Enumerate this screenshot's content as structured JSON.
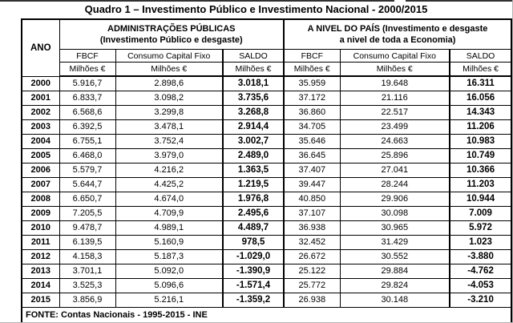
{
  "title": "Quadro 1 – Investimento Público e Investimento Nacional - 2000/2015",
  "table": {
    "ano_label": "ANO",
    "unit": "Milhões €",
    "groups": [
      {
        "line1": "ADMINISTRAÇÕES PÚBLICAS",
        "line2": "(Investimento Público e desgaste)",
        "cols": [
          "FBCF",
          "Consumo Capital Fixo",
          "SALDO"
        ]
      },
      {
        "line1": "A NIVEL DO PAÍS (Investimento e desgaste",
        "line2": "a nivel de toda a Economia)",
        "cols": [
          "FBCF",
          "Consumo Capital Fixo",
          "SALDO"
        ]
      }
    ],
    "rows": [
      {
        "ano": "2000",
        "values": [
          "5.916,7",
          "2.898,6",
          "3.018,1",
          "35.959",
          "19.648",
          "16.311"
        ]
      },
      {
        "ano": "2001",
        "values": [
          "6.833,7",
          "3.098,2",
          "3.735,6",
          "37.172",
          "21.116",
          "16.056"
        ]
      },
      {
        "ano": "2002",
        "values": [
          "6.568,6",
          "3.299,8",
          "3.268,8",
          "36.860",
          "22.517",
          "14.343"
        ]
      },
      {
        "ano": "2003",
        "values": [
          "6.392,5",
          "3.478,1",
          "2.914,4",
          "34.705",
          "23.499",
          "11.206"
        ]
      },
      {
        "ano": "2004",
        "values": [
          "6.755,1",
          "3.752,4",
          "3.002,7",
          "35.646",
          "24.663",
          "10.983"
        ]
      },
      {
        "ano": "2005",
        "values": [
          "6.468,0",
          "3.979,0",
          "2.489,0",
          "36.645",
          "25.896",
          "10.749"
        ]
      },
      {
        "ano": "2006",
        "values": [
          "5.579,7",
          "4.216,2",
          "1.363,5",
          "37.407",
          "27.041",
          "10.366"
        ]
      },
      {
        "ano": "2007",
        "values": [
          "5.644,7",
          "4.425,2",
          "1.219,5",
          "39.447",
          "28.244",
          "11.203"
        ]
      },
      {
        "ano": "2008",
        "values": [
          "6.650,7",
          "4.674,0",
          "1.976,8",
          "40.850",
          "29.906",
          "10.944"
        ]
      },
      {
        "ano": "2009",
        "values": [
          "7.205,5",
          "4.709,9",
          "2.495,6",
          "37.107",
          "30.098",
          "7.009"
        ]
      },
      {
        "ano": "2010",
        "values": [
          "9.478,7",
          "4.989,1",
          "4.489,7",
          "36.938",
          "30.965",
          "5.972"
        ]
      },
      {
        "ano": "2011",
        "values": [
          "6.139,5",
          "5.160,9",
          "978,5",
          "32.452",
          "31.429",
          "1.023"
        ]
      },
      {
        "ano": "2012",
        "values": [
          "4.158,3",
          "5.187,3",
          "-1.029,0",
          "26.672",
          "30.552",
          "-3.880"
        ]
      },
      {
        "ano": "2013",
        "values": [
          "3.701,1",
          "5.092,0",
          "-1.390,9",
          "25.122",
          "29.884",
          "-4.762"
        ]
      },
      {
        "ano": "2014",
        "values": [
          "3.525,3",
          "5.096,6",
          "-1.571,4",
          "25.772",
          "29.824",
          "-4.053"
        ]
      },
      {
        "ano": "2015",
        "values": [
          "3.856,9",
          "5.216,1",
          "-1.359,2",
          "26.938",
          "30.148",
          "-3.210"
        ]
      }
    ],
    "fonte": "FONTE: Contas Nacionais - 1995-2015 - INE"
  }
}
